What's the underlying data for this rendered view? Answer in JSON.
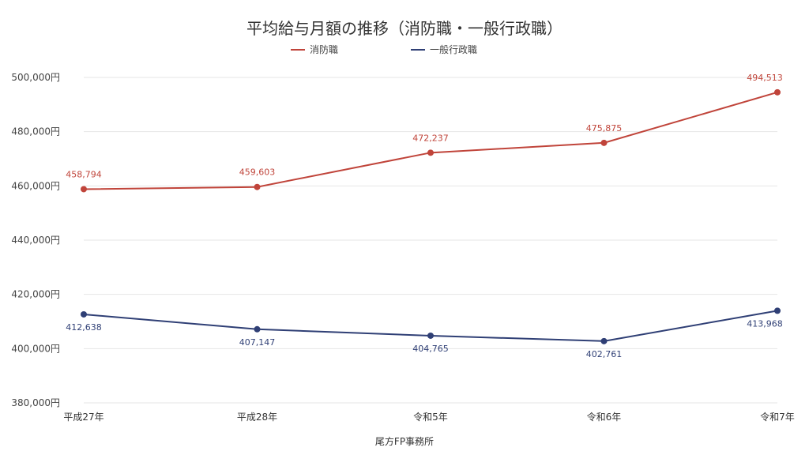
{
  "chart_data": {
    "type": "line",
    "title": "平均給与月額の推移（消防職・一般行政職）",
    "categories": [
      "平成27年",
      "平成28年",
      "令和5年",
      "令和6年",
      "令和7年"
    ],
    "series": [
      {
        "name": "消防職",
        "color": "#c0443a",
        "values": [
          458794,
          459603,
          472237,
          475875,
          494513
        ],
        "labels": [
          "458,794",
          "459,603",
          "472,237",
          "475,875",
          "494,513"
        ]
      },
      {
        "name": "一般行政職",
        "color": "#2f3f75",
        "values": [
          412638,
          407147,
          404765,
          402761,
          413968
        ],
        "labels": [
          "412,638",
          "407,147",
          "404,765",
          "402,761",
          "413,968"
        ]
      }
    ],
    "ylim": [
      380000,
      500000
    ],
    "yticks": [
      380000,
      400000,
      420000,
      440000,
      460000,
      480000,
      500000
    ],
    "ytick_labels": [
      "380,000円",
      "400,000円",
      "420,000円",
      "440,000円",
      "460,000円",
      "480,000円",
      "500,000円"
    ],
    "grid": true,
    "legend": "top-center",
    "footer": "尾方FP事務所"
  }
}
